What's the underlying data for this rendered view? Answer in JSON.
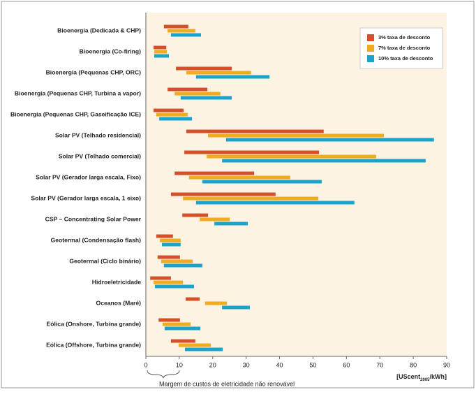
{
  "chart_data": {
    "type": "range-bar",
    "categories": [
      "Bioenergia (Dedicada & CHP)",
      "Bioenergia (Co-firing)",
      "Bioenergia (Pequenas CHP, ORC)",
      "Bioenergia (Pequenas CHP, Turbina a vapor)",
      "Bioenergia (Pequenas CHP, Gaseificação ICE)",
      "Solar PV (Telhado residencial)",
      "Solar PV (Telhado comercial)",
      "Solar PV (Gerador larga escala, Fixo)",
      "Solar PV (Gerador larga escala, 1 eixo)",
      "CSP – Concentrating Solar Power",
      "Geotermal (Condensação flash)",
      "Geotermal (Ciclo binário)",
      "Hidroeletricidade",
      "Oceanos (Maré)",
      "Eólica (Onshore, Turbina grande)",
      "Eólica (Offshore, Turbina grande)"
    ],
    "series": [
      {
        "name": "3%   taxa de desconto",
        "color": "#d4502b",
        "values": [
          [
            5.4,
            12.7
          ],
          [
            2.3,
            6.1
          ],
          [
            9,
            25.7
          ],
          [
            6.5,
            18.4
          ],
          [
            2.3,
            11.3
          ],
          [
            12.1,
            53.2
          ],
          [
            11.5,
            51.8
          ],
          [
            8.6,
            32.4
          ],
          [
            7.5,
            38.8
          ],
          [
            10.9,
            18.6
          ],
          [
            3.1,
            8.1
          ],
          [
            3.5,
            10.2
          ],
          [
            1.3,
            7.5
          ],
          [
            11.9,
            16.1
          ],
          [
            3.8,
            10.2
          ],
          [
            7.5,
            14.8
          ]
        ]
      },
      {
        "name": "7%   taxa de desconto",
        "color": "#f0ab1f",
        "values": [
          [
            6.5,
            14.8
          ],
          [
            2.5,
            6.3
          ],
          [
            12.1,
            31.5
          ],
          [
            8.6,
            22.3
          ],
          [
            3.1,
            12.5
          ],
          [
            18.6,
            71.2
          ],
          [
            18.2,
            68.9
          ],
          [
            12.9,
            43.2
          ],
          [
            11.1,
            51.6
          ],
          [
            16.1,
            25.1
          ],
          [
            4.2,
            10.4
          ],
          [
            4.6,
            14
          ],
          [
            2.3,
            11.1
          ],
          [
            17.7,
            24.2
          ],
          [
            5,
            13.4
          ],
          [
            9.8,
            19.4
          ]
        ]
      },
      {
        "name": "10% taxa de desconto",
        "color": "#1ba3cc",
        "values": [
          [
            7.5,
            16.5
          ],
          [
            2.5,
            6.9
          ],
          [
            15,
            37
          ],
          [
            10.4,
            25.7
          ],
          [
            4,
            13.8
          ],
          [
            24,
            86.2
          ],
          [
            22.8,
            83.7
          ],
          [
            16.9,
            52.6
          ],
          [
            15,
            62.4
          ],
          [
            20.5,
            30.5
          ],
          [
            4.8,
            10.4
          ],
          [
            5.4,
            16.9
          ],
          [
            2.7,
            14.4
          ],
          [
            22.8,
            31.1
          ],
          [
            5.6,
            16.3
          ],
          [
            11.7,
            23
          ]
        ]
      }
    ],
    "xlim": [
      0,
      90
    ],
    "xticks": [
      0,
      10,
      20,
      30,
      40,
      50,
      60,
      70,
      80,
      90
    ],
    "x_label": "[UScent",
    "x_label_sub": "2005",
    "x_label_end": "/kWh]",
    "annotation": "Margem de custos de eletricidade não renovável",
    "legend": "top-right"
  }
}
